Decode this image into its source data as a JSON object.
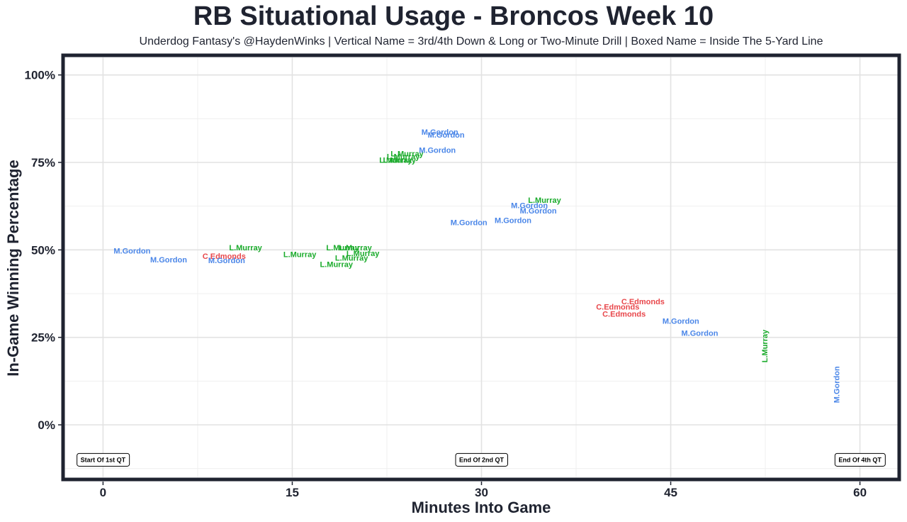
{
  "colors": {
    "M.Gordon": "#4a86e8",
    "L.Murray": "#1aab2b",
    "C.Edmonds": "#e8474b",
    "frame": "#1f2330"
  },
  "chart_data": {
    "type": "scatter",
    "title": "RB Situational Usage - Broncos Week 10",
    "subtitle": "Underdog Fantasy's @HaydenWinks | Vertical Name = 3rd/4th Down & Long or Two-Minute Drill | Boxed Name = Inside The 5-Yard Line",
    "xlabel": "Minutes Into Game",
    "ylabel": "In-Game Winning Percentage",
    "xlim": [
      -3,
      63
    ],
    "ylim": [
      -15,
      105
    ],
    "xticks": [
      0,
      15,
      30,
      45,
      60
    ],
    "xtick_labels": [
      "0",
      "15",
      "30",
      "45",
      "60"
    ],
    "yticks": [
      0,
      25,
      50,
      75,
      100
    ],
    "ytick_labels": [
      "0%",
      "25%",
      "50%",
      "75%",
      "100%"
    ],
    "grid": true,
    "annotations": [
      {
        "x": 0,
        "label": "Start Of 1st QT"
      },
      {
        "x": 30,
        "label": "End Of 2nd QT"
      },
      {
        "x": 60,
        "label": "End Of 4th QT"
      }
    ],
    "points": [
      {
        "x": 2.3,
        "y": 49.5,
        "name": "M.Gordon",
        "vertical": false
      },
      {
        "x": 5.2,
        "y": 47.0,
        "name": "M.Gordon",
        "vertical": false
      },
      {
        "x": 9.6,
        "y": 48.0,
        "name": "C.Edmonds",
        "vertical": false
      },
      {
        "x": 9.8,
        "y": 46.8,
        "name": "M.Gordon",
        "vertical": false
      },
      {
        "x": 11.3,
        "y": 50.5,
        "name": "L.Murray",
        "vertical": false
      },
      {
        "x": 15.6,
        "y": 48.5,
        "name": "L.Murray",
        "vertical": false
      },
      {
        "x": 18.5,
        "y": 45.7,
        "name": "L.Murray",
        "vertical": false
      },
      {
        "x": 19.0,
        "y": 50.5,
        "name": "L.Murray",
        "vertical": false
      },
      {
        "x": 19.7,
        "y": 47.5,
        "name": "L.Murray",
        "vertical": false
      },
      {
        "x": 20.0,
        "y": 50.5,
        "name": "L.Murray",
        "vertical": false
      },
      {
        "x": 20.6,
        "y": 48.8,
        "name": "L.Murray",
        "vertical": false
      },
      {
        "x": 23.2,
        "y": 75.5,
        "name": "L.Murray",
        "vertical": false
      },
      {
        "x": 23.5,
        "y": 75.5,
        "name": "L.Murray",
        "vertical": false
      },
      {
        "x": 23.8,
        "y": 76.5,
        "name": "L.Murray",
        "vertical": false
      },
      {
        "x": 24.1,
        "y": 77.3,
        "name": "L.Murray",
        "vertical": false
      },
      {
        "x": 26.5,
        "y": 78.3,
        "name": "M.Gordon",
        "vertical": false
      },
      {
        "x": 26.7,
        "y": 83.5,
        "name": "M.Gordon",
        "vertical": false
      },
      {
        "x": 27.2,
        "y": 82.7,
        "name": "M.Gordon",
        "vertical": false
      },
      {
        "x": 29.0,
        "y": 57.7,
        "name": "M.Gordon",
        "vertical": false
      },
      {
        "x": 32.5,
        "y": 58.3,
        "name": "M.Gordon",
        "vertical": false
      },
      {
        "x": 33.8,
        "y": 62.5,
        "name": "M.Gordon",
        "vertical": false
      },
      {
        "x": 34.5,
        "y": 61.0,
        "name": "M.Gordon",
        "vertical": false
      },
      {
        "x": 35.0,
        "y": 64.0,
        "name": "L.Murray",
        "vertical": false
      },
      {
        "x": 40.8,
        "y": 33.5,
        "name": "C.Edmonds",
        "vertical": false
      },
      {
        "x": 41.3,
        "y": 31.5,
        "name": "C.Edmonds",
        "vertical": false
      },
      {
        "x": 42.8,
        "y": 35.0,
        "name": "C.Edmonds",
        "vertical": false
      },
      {
        "x": 45.8,
        "y": 29.5,
        "name": "M.Gordon",
        "vertical": false
      },
      {
        "x": 47.3,
        "y": 26.0,
        "name": "M.Gordon",
        "vertical": false
      },
      {
        "x": 52.5,
        "y": 22.5,
        "name": "L.Murray",
        "vertical": true
      },
      {
        "x": 58.2,
        "y": 11.5,
        "name": "M.Gordon",
        "vertical": true
      }
    ]
  }
}
